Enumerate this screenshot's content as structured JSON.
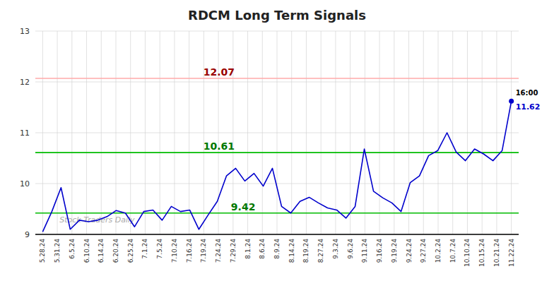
{
  "chart_data": {
    "type": "line",
    "title": "RDCM Long Term Signals",
    "xlim": [
      -0.5,
      32.5
    ],
    "xticks": [
      {
        "value": 0,
        "label": "5.28.24"
      },
      {
        "value": 1,
        "label": "5.31.24"
      },
      {
        "value": 2,
        "label": "6.5.24"
      },
      {
        "value": 3,
        "label": "6.10.24"
      },
      {
        "value": 4,
        "label": "6.14.24"
      },
      {
        "value": 5,
        "label": "6.20.24"
      },
      {
        "value": 6,
        "label": "6.25.24"
      },
      {
        "value": 7,
        "label": "7.1.24"
      },
      {
        "value": 8,
        "label": "7.5.24"
      },
      {
        "value": 9,
        "label": "7.10.24"
      },
      {
        "value": 10,
        "label": "7.16.24"
      },
      {
        "value": 11,
        "label": "7.19.24"
      },
      {
        "value": 12,
        "label": "7.24.24"
      },
      {
        "value": 13,
        "label": "7.29.24"
      },
      {
        "value": 14,
        "label": "8.1.24"
      },
      {
        "value": 15,
        "label": "8.6.24"
      },
      {
        "value": 16,
        "label": "8.9.24"
      },
      {
        "value": 17,
        "label": "8.14.24"
      },
      {
        "value": 18,
        "label": "8.19.24"
      },
      {
        "value": 19,
        "label": "8.27.24"
      },
      {
        "value": 20,
        "label": "9.3.24"
      },
      {
        "value": 21,
        "label": "9.6.24"
      },
      {
        "value": 22,
        "label": "9.11.24"
      },
      {
        "value": 23,
        "label": "9.16.24"
      },
      {
        "value": 24,
        "label": "9.19.24"
      },
      {
        "value": 25,
        "label": "9.24.24"
      },
      {
        "value": 26,
        "label": "9.27.24"
      },
      {
        "value": 27,
        "label": "10.2.24"
      },
      {
        "value": 28,
        "label": "10.7.24"
      },
      {
        "value": 29,
        "label": "10.10.24"
      },
      {
        "value": 30,
        "label": "10.15.24"
      },
      {
        "value": 31,
        "label": "10.21.24"
      },
      {
        "value": 32,
        "label": "11.22.24"
      }
    ],
    "values": [
      9.05,
      9.45,
      9.92,
      9.1,
      9.28,
      9.25,
      9.28,
      9.35,
      9.47,
      9.42,
      9.15,
      9.45,
      9.48,
      9.28,
      9.55,
      9.45,
      9.48,
      9.1,
      9.38,
      9.65,
      10.15,
      10.3,
      10.05,
      10.2,
      9.95,
      10.3,
      9.55,
      9.42,
      9.65,
      9.73,
      9.62,
      9.52,
      9.48,
      9.32,
      9.55,
      10.68,
      9.85,
      9.72,
      9.62,
      9.45,
      10.02,
      10.15,
      10.55,
      10.65,
      11.0,
      10.62,
      10.45,
      10.68,
      10.58,
      10.45,
      10.65,
      11.62
    ],
    "color": "#0000cc",
    "ylim": [
      9.0,
      13.0
    ],
    "yticks": [
      9,
      10,
      11,
      12,
      13
    ],
    "grid": true,
    "annotations": [
      {
        "text": "12.07",
        "y": 12.07,
        "color": "#990000",
        "line_color": "#ffaaaa"
      },
      {
        "text": "10.61",
        "y": 10.61,
        "color": "#007700",
        "line_color": "#00bb00"
      },
      {
        "text": "9.42",
        "y": 9.42,
        "color": "#007700",
        "line_color": "#00bb00"
      }
    ],
    "callout": {
      "time": "16:00",
      "text": "11.62",
      "color": "#0000cc"
    },
    "watermark": "Stock Traders Daily"
  }
}
